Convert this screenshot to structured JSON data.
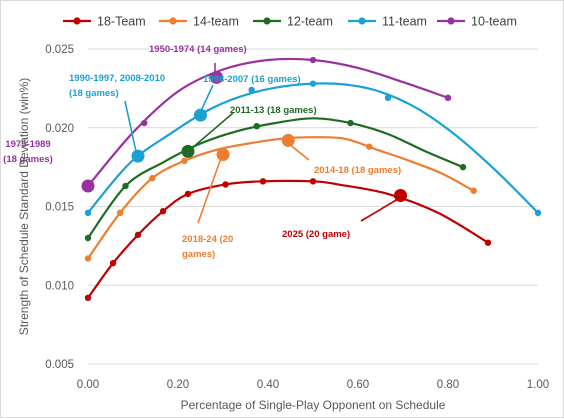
{
  "chart_data": {
    "type": "line",
    "xlabel": "Percentage of Single-Play Opponent on Schedule",
    "ylabel": "Strength of Schedule Standard Deviation (win%)",
    "xlim": [
      0,
      1
    ],
    "ylim": [
      0.005,
      0.025
    ],
    "x_ticks": [
      "0.00",
      "0.20",
      "0.40",
      "0.60",
      "0.80",
      "1.00"
    ],
    "y_ticks": [
      "0.005",
      "0.010",
      "0.015",
      "0.020",
      "0.025"
    ],
    "grid": "horizontal",
    "legend_position": "top",
    "series": [
      {
        "name": "18-Team",
        "color": "#c00000",
        "points": [
          [
            0.0,
            0.0092
          ],
          [
            0.0556,
            0.0114
          ],
          [
            0.1111,
            0.0132
          ],
          [
            0.1667,
            0.0147
          ],
          [
            0.2222,
            0.0158
          ],
          [
            0.3056,
            0.0164
          ],
          [
            0.3889,
            0.0166
          ],
          [
            0.5,
            0.0166
          ],
          [
            0.5556,
            0.0164
          ],
          [
            0.6667,
            0.0158
          ],
          [
            0.7778,
            0.0146
          ],
          [
            0.8889,
            0.0127
          ]
        ],
        "markers": [
          [
            0.0,
            0.0092
          ],
          [
            0.0556,
            0.0114
          ],
          [
            0.1111,
            0.0132
          ],
          [
            0.1667,
            0.0147
          ],
          [
            0.2222,
            0.0158
          ],
          [
            0.3056,
            0.0164
          ],
          [
            0.3889,
            0.0166
          ],
          [
            0.5,
            0.0166
          ],
          [
            0.8889,
            0.0127
          ]
        ],
        "highlight": [
          0.6944,
          0.0157
        ]
      },
      {
        "name": "14-team",
        "color": "#ed7d31",
        "points": [
          [
            0.0,
            0.0117
          ],
          [
            0.0714,
            0.0146
          ],
          [
            0.1429,
            0.0168
          ],
          [
            0.2143,
            0.0179
          ],
          [
            0.2857,
            0.0186
          ],
          [
            0.3571,
            0.019
          ],
          [
            0.4286,
            0.0193
          ],
          [
            0.5,
            0.0194
          ],
          [
            0.5714,
            0.0193
          ],
          [
            0.6429,
            0.0186
          ],
          [
            0.7143,
            0.0179
          ],
          [
            0.7857,
            0.0171
          ],
          [
            0.8571,
            0.016
          ]
        ],
        "markers": [
          [
            0.0,
            0.0117
          ],
          [
            0.0714,
            0.0146
          ],
          [
            0.1429,
            0.0168
          ],
          [
            0.2143,
            0.0179
          ],
          [
            0.625,
            0.0188
          ],
          [
            0.8571,
            0.016
          ]
        ],
        "highlight": [
          [
            0.3,
            0.0183
          ],
          [
            0.445,
            0.0192
          ]
        ]
      },
      {
        "name": "12-team",
        "color": "#1e6b24",
        "points": [
          [
            0.0,
            0.013
          ],
          [
            0.0833,
            0.0163
          ],
          [
            0.1667,
            0.0178
          ],
          [
            0.25,
            0.019
          ],
          [
            0.3333,
            0.0198
          ],
          [
            0.4167,
            0.0203
          ],
          [
            0.5,
            0.0206
          ],
          [
            0.5833,
            0.0203
          ],
          [
            0.6667,
            0.0196
          ],
          [
            0.75,
            0.0185
          ],
          [
            0.8333,
            0.0175
          ]
        ],
        "markers": [
          [
            0.0,
            0.013
          ],
          [
            0.0833,
            0.0163
          ],
          [
            0.375,
            0.0201
          ],
          [
            0.5833,
            0.0203
          ],
          [
            0.8333,
            0.0175
          ]
        ],
        "highlight": [
          0.2222,
          0.0185
        ]
      },
      {
        "name": "11-team",
        "color": "#1ba1d4",
        "points": [
          [
            0.0,
            0.0146
          ],
          [
            0.0909,
            0.0177
          ],
          [
            0.1818,
            0.0196
          ],
          [
            0.2727,
            0.0212
          ],
          [
            0.3636,
            0.0222
          ],
          [
            0.4545,
            0.0227
          ],
          [
            0.5455,
            0.0228
          ],
          [
            0.6364,
            0.0224
          ],
          [
            0.7273,
            0.0213
          ],
          [
            0.8182,
            0.0195
          ],
          [
            0.9091,
            0.0172
          ],
          [
            1.0,
            0.0146
          ]
        ],
        "markers": [
          [
            0.0,
            0.0146
          ],
          [
            0.3636,
            0.0224
          ],
          [
            0.5,
            0.0228
          ],
          [
            0.6667,
            0.0219
          ],
          [
            1.0,
            0.0146
          ]
        ],
        "highlight": [
          [
            0.1111,
            0.0182
          ],
          [
            0.25,
            0.0208
          ]
        ]
      },
      {
        "name": "10-team",
        "color": "#9932a0",
        "points": [
          [
            0.0,
            0.0163
          ],
          [
            0.1,
            0.0197
          ],
          [
            0.2,
            0.0223
          ],
          [
            0.3,
            0.0237
          ],
          [
            0.4,
            0.0243
          ],
          [
            0.5,
            0.0243
          ],
          [
            0.6,
            0.0238
          ],
          [
            0.7,
            0.0229
          ],
          [
            0.8,
            0.0219
          ]
        ],
        "markers": [
          [
            0.125,
            0.0203
          ],
          [
            0.5,
            0.0243
          ],
          [
            0.8,
            0.0219
          ]
        ],
        "highlight": [
          [
            0.0,
            0.0163
          ],
          [
            0.2857,
            0.0232
          ]
        ]
      }
    ],
    "annotations": [
      {
        "text": "1950-1974 (14 games)",
        "color": "#9932a0"
      },
      {
        "text": "1990-1997, 2008-2010",
        "color": "#1ba1d4"
      },
      {
        "text": "(18 games)",
        "color": "#1ba1d4"
      },
      {
        "text": "1998-2007 (16 games)",
        "color": "#1ba1d4"
      },
      {
        "text": "2011-13 (18 games)",
        "color": "#1e6b24"
      },
      {
        "text": "1975-1989",
        "color": "#9932a0"
      },
      {
        "text": "(18 games)",
        "color": "#9932a0"
      },
      {
        "text": "2014-18 (18 games)",
        "color": "#ed7d31"
      },
      {
        "text": "2018-24 (20",
        "color": "#ed7d31"
      },
      {
        "text": "games)",
        "color": "#ed7d31"
      },
      {
        "text": "2025 (20 game)",
        "color": "#c00000"
      }
    ]
  }
}
